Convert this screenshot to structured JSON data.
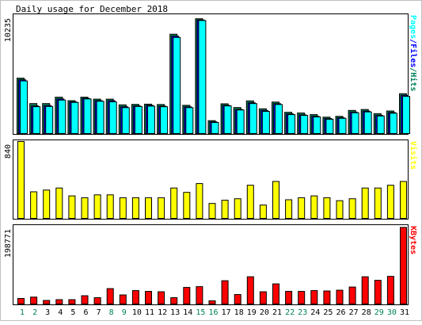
{
  "title": "Daily usage for December 2018",
  "colors": {
    "background": "#ffffff",
    "frame": "#c0c0c0",
    "panel_border": "#000000",
    "hits": "#00805c",
    "files": "#0000ff",
    "pages": "#00ffff",
    "visits": "#ffff00",
    "kbytes": "#ff0000",
    "day_weekday": "#000000",
    "day_weekend": "#00805c"
  },
  "chart_data": [
    {
      "type": "bar",
      "name": "hits-files-pages",
      "title": "Daily usage for December 2018",
      "categories": [
        "1",
        "2",
        "3",
        "4",
        "5",
        "6",
        "7",
        "8",
        "9",
        "10",
        "11",
        "12",
        "13",
        "14",
        "15",
        "16",
        "17",
        "18",
        "19",
        "20",
        "21",
        "22",
        "23",
        "24",
        "25",
        "26",
        "27",
        "28",
        "29",
        "30",
        "31"
      ],
      "weekend_days": [
        "1",
        "2",
        "8",
        "9",
        "15",
        "16",
        "22",
        "23",
        "29",
        "30"
      ],
      "ymax_label": "10235",
      "ylim": [
        0,
        10235
      ],
      "side_label": [
        "Pages",
        "/",
        "Files",
        "/",
        "Hits"
      ],
      "series": [
        {
          "name": "Hits",
          "color": "#00805c",
          "values": [
            4840,
            2650,
            2650,
            3200,
            2900,
            3200,
            3030,
            3030,
            2540,
            2580,
            2600,
            2570,
            8620,
            2500,
            9950,
            1180,
            2630,
            2310,
            2880,
            2200,
            2780,
            1900,
            1840,
            1700,
            1480,
            1550,
            2060,
            2140,
            1780,
            2010,
            3500
          ]
        },
        {
          "name": "Files",
          "color": "#0000ff",
          "values": [
            4700,
            2450,
            2480,
            3050,
            2800,
            3100,
            2900,
            2900,
            2380,
            2450,
            2500,
            2430,
            8460,
            2370,
            9850,
            1080,
            2500,
            2150,
            2720,
            2060,
            2640,
            1760,
            1680,
            1560,
            1360,
            1430,
            1920,
            2000,
            1640,
            1880,
            3360
          ]
        },
        {
          "name": "Pages",
          "color": "#00ffff",
          "values": [
            4600,
            2380,
            2400,
            2950,
            2750,
            3050,
            2850,
            2800,
            2300,
            2400,
            2430,
            2380,
            8340,
            2300,
            9800,
            1020,
            2450,
            2100,
            2650,
            1980,
            2570,
            1700,
            1630,
            1500,
            1300,
            1380,
            1860,
            1930,
            1580,
            1820,
            3270
          ]
        }
      ]
    },
    {
      "type": "bar",
      "name": "visits",
      "categories": [
        "1",
        "2",
        "3",
        "4",
        "5",
        "6",
        "7",
        "8",
        "9",
        "10",
        "11",
        "12",
        "13",
        "14",
        "15",
        "16",
        "17",
        "18",
        "19",
        "20",
        "21",
        "22",
        "23",
        "24",
        "25",
        "26",
        "27",
        "28",
        "29",
        "30",
        "31"
      ],
      "ymax_label": "840",
      "ylim": [
        0,
        840
      ],
      "side_label": [
        "Visits"
      ],
      "series": [
        {
          "name": "Visits",
          "color": "#ffff00",
          "values": [
            840,
            296,
            315,
            337,
            252,
            232,
            263,
            263,
            232,
            232,
            232,
            232,
            337,
            290,
            385,
            170,
            205,
            221,
            367,
            153,
            408,
            210,
            232,
            252,
            232,
            200,
            221,
            337,
            337,
            367,
            408
          ]
        }
      ]
    },
    {
      "type": "bar",
      "name": "kbytes",
      "categories": [
        "1",
        "2",
        "3",
        "4",
        "5",
        "6",
        "7",
        "8",
        "9",
        "10",
        "11",
        "12",
        "13",
        "14",
        "15",
        "16",
        "17",
        "18",
        "19",
        "20",
        "21",
        "22",
        "23",
        "24",
        "25",
        "26",
        "27",
        "28",
        "29",
        "30",
        "31"
      ],
      "ymax_label": "198771",
      "ylim": [
        0,
        198771
      ],
      "side_label": [
        "KBytes"
      ],
      "series": [
        {
          "name": "KBytes",
          "color": "#ff0000",
          "values": [
            16000,
            19500,
            11000,
            13000,
            13000,
            23000,
            18000,
            41000,
            25000,
            36000,
            34000,
            33000,
            18000,
            44000,
            46000,
            10000,
            61000,
            26000,
            71000,
            33000,
            53000,
            34000,
            34000,
            36000,
            35000,
            37000,
            45000,
            71000,
            62000,
            72000,
            196000
          ]
        }
      ]
    }
  ]
}
